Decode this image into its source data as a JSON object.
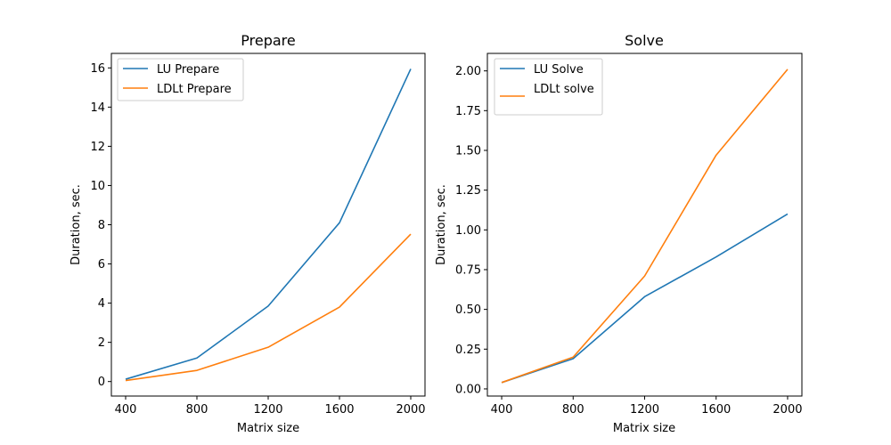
{
  "chart_data": [
    {
      "type": "line",
      "title": "Prepare",
      "xlabel": "Matrix size",
      "ylabel": "Duration, sec.",
      "x": [
        400,
        800,
        1200,
        1600,
        2000
      ],
      "xlim": [
        320,
        2080
      ],
      "ylim": [
        -0.74,
        16.74
      ],
      "xticks": [
        400,
        800,
        1200,
        1600,
        2000
      ],
      "yticks": [
        0,
        2,
        4,
        6,
        8,
        10,
        12,
        14,
        16
      ],
      "ytick_labels": [
        "0",
        "2",
        "4",
        "6",
        "8",
        "10",
        "12",
        "14",
        "16"
      ],
      "legend": "top-left",
      "grid": false,
      "series": [
        {
          "name": "LU Prepare",
          "color": "#1f77b4",
          "values": [
            0.12,
            1.2,
            3.85,
            8.1,
            15.95
          ]
        },
        {
          "name": "LDLt Prepare",
          "color": "#ff7f0e",
          "values": [
            0.05,
            0.57,
            1.75,
            3.8,
            7.52
          ]
        }
      ]
    },
    {
      "type": "line",
      "title": "Solve",
      "xlabel": "Matrix size",
      "ylabel": "Duration, sec.",
      "x": [
        400,
        800,
        1200,
        1600,
        2000
      ],
      "xlim": [
        320,
        2080
      ],
      "ylim": [
        -0.045,
        2.11
      ],
      "xticks": [
        400,
        800,
        1200,
        1600,
        2000
      ],
      "yticks": [
        0,
        0.25,
        0.5,
        0.75,
        1.0,
        1.25,
        1.5,
        1.75,
        2.0
      ],
      "ytick_labels": [
        "0.00",
        "0.25",
        "0.50",
        "0.75",
        "1.00",
        "1.25",
        "1.50",
        "1.75",
        "2.00"
      ],
      "legend": "top-left",
      "grid": false,
      "series": [
        {
          "name": "LU Solve",
          "color": "#1f77b4",
          "values": [
            0.04,
            0.19,
            0.58,
            0.83,
            1.1
          ]
        },
        {
          "name": "LDLt solve",
          "color": "#ff7f0e",
          "values": [
            0.04,
            0.2,
            0.71,
            1.47,
            2.01
          ]
        }
      ]
    }
  ]
}
